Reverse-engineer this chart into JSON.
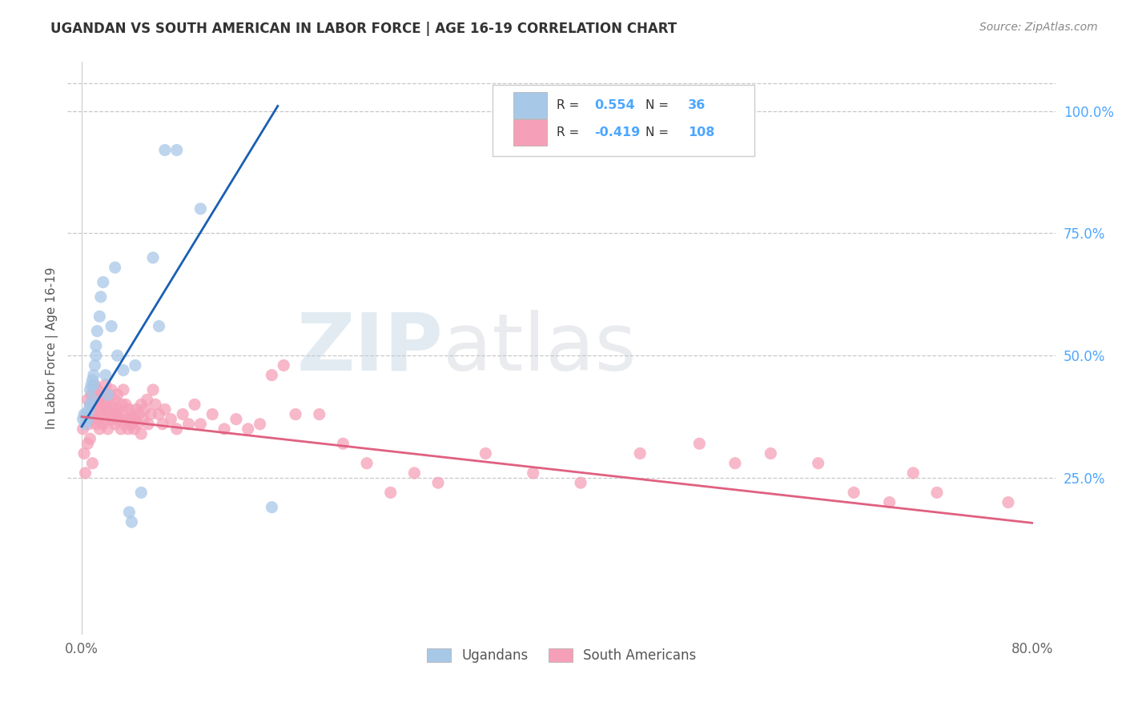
{
  "title": "UGANDAN VS SOUTH AMERICAN IN LABOR FORCE | AGE 16-19 CORRELATION CHART",
  "source": "Source: ZipAtlas.com",
  "ylabel": "In Labor Force | Age 16-19",
  "watermark_zip": "ZIP",
  "watermark_atlas": "atlas",
  "x_tick_positions": [
    0.0,
    0.1,
    0.2,
    0.3,
    0.4,
    0.5,
    0.6,
    0.7,
    0.8
  ],
  "x_tick_labels": [
    "0.0%",
    "",
    "",
    "",
    "",
    "",
    "",
    "",
    "80.0%"
  ],
  "y_tick_labels_right": [
    "100.0%",
    "75.0%",
    "50.0%",
    "25.0%"
  ],
  "y_ticks_right": [
    1.0,
    0.75,
    0.5,
    0.25
  ],
  "xlim": [
    -0.012,
    0.82
  ],
  "ylim": [
    -0.07,
    1.1
  ],
  "ugandan_R": 0.554,
  "ugandan_N": 36,
  "south_american_R": -0.419,
  "south_american_N": 108,
  "ugandan_color": "#a8c8e8",
  "ugandan_line_color": "#1a5fb4",
  "south_american_color": "#f5a0b8",
  "south_american_line_color": "#e06080",
  "background_color": "#ffffff",
  "grid_color": "#c8c8c8",
  "title_color": "#333333",
  "right_axis_color": "#4da6ff",
  "ugandan_x": [
    0.001,
    0.002,
    0.003,
    0.004,
    0.005,
    0.006,
    0.007,
    0.007,
    0.008,
    0.009,
    0.009,
    0.01,
    0.01,
    0.011,
    0.012,
    0.012,
    0.013,
    0.015,
    0.016,
    0.018,
    0.02,
    0.022,
    0.025,
    0.028,
    0.03,
    0.035,
    0.04,
    0.042,
    0.045,
    0.05,
    0.06,
    0.065,
    0.07,
    0.08,
    0.1,
    0.16
  ],
  "ugandan_y": [
    0.37,
    0.38,
    0.36,
    0.38,
    0.37,
    0.39,
    0.4,
    0.43,
    0.44,
    0.41,
    0.45,
    0.44,
    0.46,
    0.48,
    0.5,
    0.52,
    0.55,
    0.58,
    0.62,
    0.65,
    0.46,
    0.42,
    0.56,
    0.68,
    0.5,
    0.47,
    0.18,
    0.16,
    0.48,
    0.22,
    0.7,
    0.56,
    0.92,
    0.92,
    0.8,
    0.19
  ],
  "south_american_x": [
    0.001,
    0.002,
    0.003,
    0.004,
    0.005,
    0.005,
    0.006,
    0.007,
    0.007,
    0.008,
    0.008,
    0.009,
    0.009,
    0.01,
    0.01,
    0.011,
    0.011,
    0.012,
    0.013,
    0.013,
    0.014,
    0.015,
    0.015,
    0.016,
    0.017,
    0.018,
    0.018,
    0.019,
    0.02,
    0.02,
    0.021,
    0.022,
    0.022,
    0.023,
    0.024,
    0.025,
    0.025,
    0.026,
    0.027,
    0.028,
    0.028,
    0.029,
    0.03,
    0.03,
    0.031,
    0.032,
    0.033,
    0.034,
    0.035,
    0.035,
    0.036,
    0.037,
    0.038,
    0.039,
    0.04,
    0.041,
    0.042,
    0.043,
    0.044,
    0.045,
    0.046,
    0.047,
    0.048,
    0.05,
    0.05,
    0.052,
    0.053,
    0.055,
    0.056,
    0.058,
    0.06,
    0.062,
    0.065,
    0.068,
    0.07,
    0.075,
    0.08,
    0.085,
    0.09,
    0.095,
    0.1,
    0.11,
    0.12,
    0.13,
    0.14,
    0.15,
    0.16,
    0.17,
    0.18,
    0.2,
    0.22,
    0.24,
    0.26,
    0.28,
    0.3,
    0.34,
    0.38,
    0.42,
    0.47,
    0.52,
    0.55,
    0.58,
    0.62,
    0.65,
    0.68,
    0.7,
    0.72,
    0.78
  ],
  "south_american_y": [
    0.35,
    0.3,
    0.26,
    0.38,
    0.41,
    0.32,
    0.36,
    0.4,
    0.33,
    0.38,
    0.42,
    0.37,
    0.28,
    0.4,
    0.43,
    0.38,
    0.44,
    0.36,
    0.4,
    0.43,
    0.37,
    0.41,
    0.35,
    0.39,
    0.38,
    0.42,
    0.36,
    0.4,
    0.37,
    0.44,
    0.39,
    0.41,
    0.35,
    0.42,
    0.38,
    0.4,
    0.43,
    0.37,
    0.39,
    0.41,
    0.36,
    0.38,
    0.37,
    0.42,
    0.39,
    0.37,
    0.35,
    0.4,
    0.38,
    0.43,
    0.36,
    0.4,
    0.37,
    0.35,
    0.39,
    0.37,
    0.36,
    0.38,
    0.35,
    0.37,
    0.39,
    0.36,
    0.38,
    0.4,
    0.34,
    0.37,
    0.39,
    0.41,
    0.36,
    0.38,
    0.43,
    0.4,
    0.38,
    0.36,
    0.39,
    0.37,
    0.35,
    0.38,
    0.36,
    0.4,
    0.36,
    0.38,
    0.35,
    0.37,
    0.35,
    0.36,
    0.46,
    0.48,
    0.38,
    0.38,
    0.32,
    0.28,
    0.22,
    0.26,
    0.24,
    0.3,
    0.26,
    0.24,
    0.3,
    0.32,
    0.28,
    0.3,
    0.28,
    0.22,
    0.2,
    0.26,
    0.22,
    0.2
  ],
  "ug_line_x0": 0.0,
  "ug_line_x1": 0.165,
  "ug_line_y0": 0.355,
  "ug_line_y1": 1.01,
  "sa_line_x0": 0.0,
  "sa_line_x1": 0.8,
  "sa_line_y0": 0.375,
  "sa_line_y1": 0.158
}
